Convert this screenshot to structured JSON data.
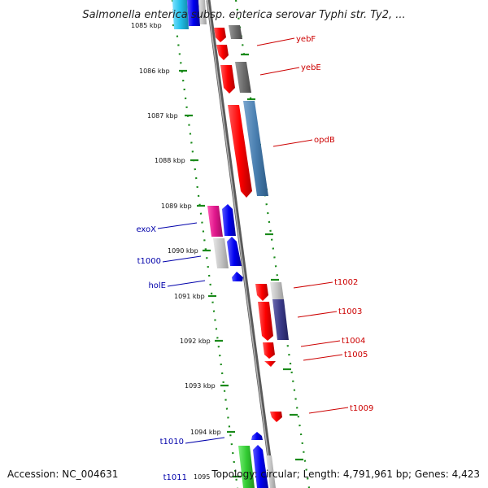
{
  "title": "Salmonella enterica subsp. enterica serovar Typhi str. Ty2, ...",
  "footer": {
    "accession": "Accession: NC_004631",
    "summary": "Topology: circular; Length: 4,791,961 bp; Genes: 4,423"
  },
  "ticks": [
    {
      "label": "1085 kbp"
    },
    {
      "label": "1086 kbp"
    },
    {
      "label": "1087 kbp"
    },
    {
      "label": "1088 kbp"
    },
    {
      "label": "1089 kbp"
    },
    {
      "label": "1090 kbp"
    },
    {
      "label": "1091 kbp"
    },
    {
      "label": "1092 kbp"
    },
    {
      "label": "1093 kbp"
    },
    {
      "label": "1094 kbp"
    },
    {
      "label": "1095"
    }
  ],
  "genes_right": [
    {
      "name": "yebF",
      "color": "#cc0000"
    },
    {
      "name": "yebE",
      "color": "#cc0000"
    },
    {
      "name": "opdB",
      "color": "#cc0000"
    },
    {
      "name": "t1002",
      "color": "#cc0000"
    },
    {
      "name": "t1003",
      "color": "#cc0000"
    },
    {
      "name": "t1004",
      "color": "#cc0000"
    },
    {
      "name": "t1005",
      "color": "#cc0000"
    },
    {
      "name": "t1009",
      "color": "#cc0000"
    }
  ],
  "genes_left": [
    {
      "name": "exoX",
      "color": "#0000aa"
    },
    {
      "name": "t1000",
      "color": "#0000aa"
    },
    {
      "name": "holE",
      "color": "#0000aa"
    },
    {
      "name": "t1010",
      "color": "#0000aa"
    },
    {
      "name": "t1011",
      "color": "#0000aa"
    }
  ],
  "colors": {
    "forward": "#ff0000",
    "reverse": "#0000ee",
    "backbone": "#8a8a8a",
    "tick_dots": "#1a8a1a",
    "cog_steel": "#4a7fb0",
    "cog_grey": "#6f6f6f",
    "cog_magenta": "#e0168c",
    "cog_lightgrey": "#c4c4c4",
    "cog_navy": "#3a3a88",
    "cog_cyan": "#22c0e8",
    "cog_green": "#33cc33"
  }
}
